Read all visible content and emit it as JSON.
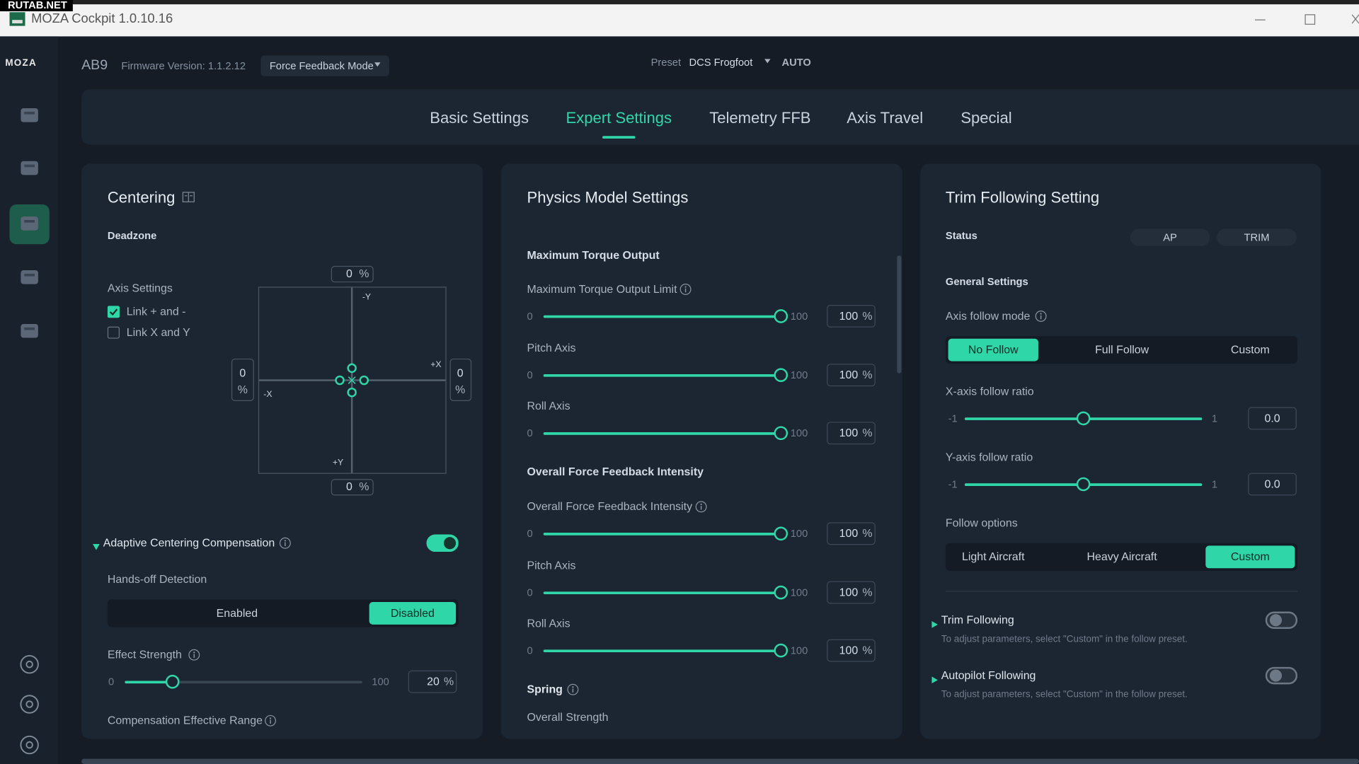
{
  "watermark": "RUTAB.NET",
  "window": {
    "title": "MOZA Cockpit 1.0.10.16"
  },
  "sidebar": {
    "logo": "MOZA",
    "active_item": 2
  },
  "header": {
    "device": "AB9",
    "firmware": "Firmware Version: 1.1.2.12",
    "mode": "Force Feedback Mode",
    "preset_label": "Preset",
    "preset": "DCS Frogfoot",
    "auto": "AUTO"
  },
  "tabs": {
    "items": [
      "Basic Settings",
      "Expert Settings",
      "Telemetry FFB",
      "Axis Travel",
      "Special"
    ],
    "active": 1
  },
  "centering": {
    "title": "Centering",
    "deadzone": "Deadzone",
    "axis_settings": "Axis Settings",
    "links": [
      {
        "label": "Link + and -",
        "checked": true
      },
      {
        "label": "Link X and Y",
        "checked": false
      }
    ],
    "pad": {
      "axes": [
        "-Y",
        "+X",
        "-X",
        "+Y"
      ],
      "top": {
        "value": 0,
        "unit": "%"
      },
      "left": {
        "value": 0,
        "unit": "%"
      },
      "right": {
        "value": 0,
        "unit": "%"
      },
      "bottom": {
        "value": 0,
        "unit": "%"
      }
    },
    "adaptive": {
      "label": "Adaptive Centering Compensation",
      "on": true
    },
    "hands_off": {
      "label": "Hands-off Detection",
      "options": [
        "Enabled",
        "Disabled"
      ],
      "selected": 1
    },
    "effect_strength": {
      "label": "Effect Strength",
      "info": true,
      "min": 0,
      "max": 100,
      "value": 20,
      "unit": "%"
    },
    "compensation_range": "Compensation Effective Range"
  },
  "physics": {
    "title": "Physics Model Settings",
    "sections": [
      {
        "title": "Maximum Torque Output",
        "sliders": [
          {
            "label": "Maximum Torque Output Limit",
            "info": true,
            "min": 0,
            "max": 100,
            "value": 100,
            "unit": "%"
          },
          {
            "label": "Pitch Axis",
            "info": false,
            "min": 0,
            "max": 100,
            "value": 100,
            "unit": "%"
          },
          {
            "label": "Roll Axis",
            "info": false,
            "min": 0,
            "max": 100,
            "value": 100,
            "unit": "%"
          }
        ]
      },
      {
        "title": "Overall Force Feedback Intensity",
        "sliders": [
          {
            "label": "Overall Force Feedback Intensity",
            "info": true,
            "min": 0,
            "max": 100,
            "value": 100,
            "unit": "%"
          },
          {
            "label": "Pitch Axis",
            "info": false,
            "min": 0,
            "max": 100,
            "value": 100,
            "unit": "%"
          },
          {
            "label": "Roll Axis",
            "info": false,
            "min": 0,
            "max": 100,
            "value": 100,
            "unit": "%"
          }
        ]
      }
    ],
    "spring": {
      "label": "Spring",
      "info": true
    },
    "overall_strength": "Overall Strength"
  },
  "trim": {
    "title": "Trim Following Setting",
    "status": {
      "label": "Status",
      "options": [
        "AP",
        "TRIM"
      ]
    },
    "general": "General Settings",
    "follow_mode": {
      "label": "Axis follow mode",
      "info": true,
      "options": [
        "No Follow",
        "Full Follow",
        "Custom"
      ],
      "selected": 0
    },
    "ratios": [
      {
        "label": "X-axis follow ratio",
        "min": -1,
        "max": 1,
        "value": {
          "value": 0,
          "label": "0.0"
        }
      },
      {
        "label": "Y-axis follow ratio",
        "min": -1,
        "max": 1,
        "value": {
          "value": 0,
          "label": "0.0"
        }
      }
    ],
    "follow_options": {
      "label": "Follow options",
      "options": [
        "Light Aircraft",
        "Heavy Aircraft",
        "Custom"
      ],
      "selected": 2
    },
    "toggles": [
      {
        "label": "Trim Following",
        "hint": "To adjust parameters, select \"Custom\" in the follow preset.",
        "on": false
      },
      {
        "label": "Autopilot Following",
        "hint": "To adjust parameters, select \"Custom\" in the follow preset.",
        "on": false
      }
    ]
  }
}
